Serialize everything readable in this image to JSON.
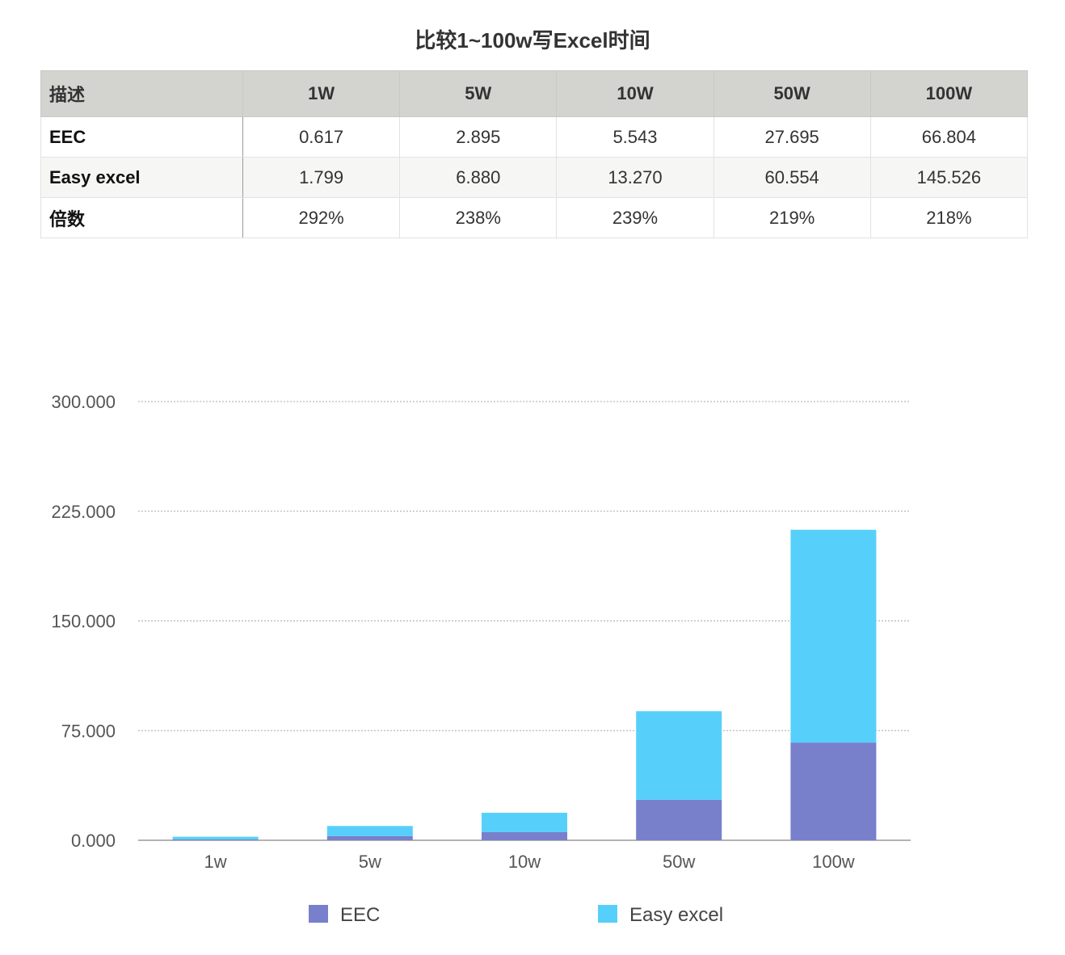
{
  "title": "比较1~100w写Excel时间",
  "table": {
    "header": [
      "描述",
      "1W",
      "5W",
      "10W",
      "50W",
      "100W"
    ],
    "rows": [
      {
        "label": "EEC",
        "values": [
          "0.617",
          "2.895",
          "5.543",
          "27.695",
          "66.804"
        ]
      },
      {
        "label": "Easy excel",
        "values": [
          "1.799",
          "6.880",
          "13.270",
          "60.554",
          "145.526"
        ]
      },
      {
        "label": "倍数",
        "values": [
          "292%",
          "238%",
          "239%",
          "219%",
          "218%"
        ]
      }
    ]
  },
  "chart_data": {
    "type": "bar",
    "stacked": true,
    "categories": [
      "1w",
      "5w",
      "10w",
      "50w",
      "100w"
    ],
    "series": [
      {
        "name": "EEC",
        "values": [
          0.617,
          2.895,
          5.543,
          27.695,
          66.804
        ],
        "color": "#7880cc"
      },
      {
        "name": "Easy excel",
        "values": [
          1.799,
          6.88,
          13.27,
          60.554,
          145.526
        ],
        "color": "#56d0fa"
      }
    ],
    "ylim": [
      0,
      300
    ],
    "yticks": [
      "0.000",
      "75.000",
      "150.000",
      "225.000",
      "300.000"
    ],
    "grid": true,
    "legend": "bottom"
  }
}
